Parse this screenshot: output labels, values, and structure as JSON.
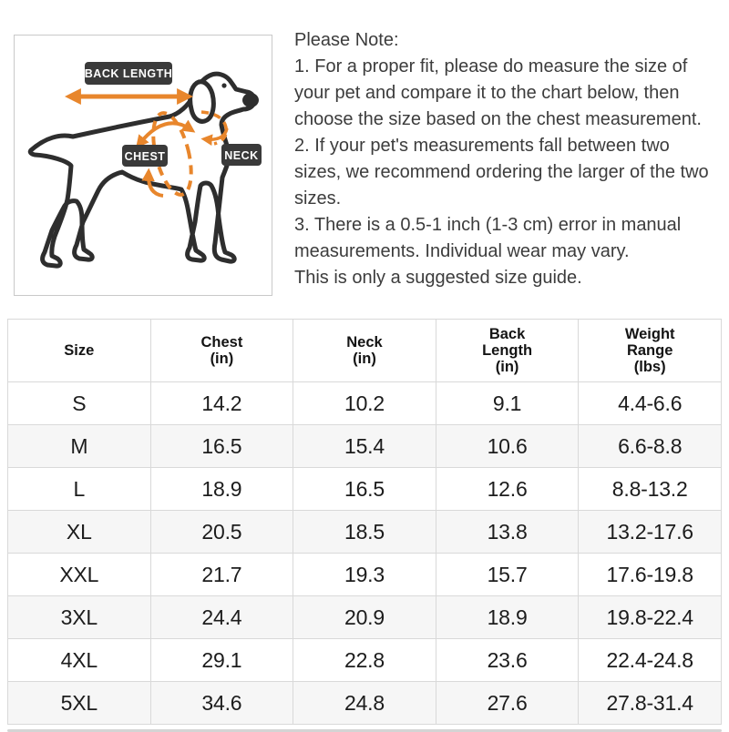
{
  "diagram": {
    "labels": {
      "back_length": "BACK LENGTH",
      "chest": "CHEST",
      "neck": "NECK"
    },
    "colors": {
      "accent": "#E8862C",
      "label_background": "#3A3A3A",
      "label_text": "#FFFFFF",
      "outline": "#2E2E2E",
      "box_border": "#C9C9C9"
    }
  },
  "notes": {
    "title": "Please Note:",
    "items": [
      "1. For a proper fit, please do measure the size of your pet and compare it to the chart below, then choose the size based on the chest measurement.",
      "2. If your pet's measurements fall between two sizes, we recommend ordering the larger of the two sizes.",
      "3. There is a 0.5-1 inch (1-3 cm) error in manual measurements. Individual wear may vary.",
      "This is only a suggested size guide."
    ]
  },
  "size_chart": {
    "headers": [
      "Size",
      "Chest\n(in)",
      "Neck\n(in)",
      "Back\nLength\n(in)",
      "Weight\nRange\n(lbs)"
    ],
    "rows": [
      [
        "S",
        "14.2",
        "10.2",
        "9.1",
        "4.4-6.6"
      ],
      [
        "M",
        "16.5",
        "15.4",
        "10.6",
        "6.6-8.8"
      ],
      [
        "L",
        "18.9",
        "16.5",
        "12.6",
        "8.8-13.2"
      ],
      [
        "XL",
        "20.5",
        "18.5",
        "13.8",
        "13.2-17.6"
      ],
      [
        "XXL",
        "21.7",
        "19.3",
        "15.7",
        "17.6-19.8"
      ],
      [
        "3XL",
        "24.4",
        "20.9",
        "18.9",
        "19.8-22.4"
      ],
      [
        "4XL",
        "29.1",
        "22.8",
        "23.6",
        "22.4-24.8"
      ],
      [
        "5XL",
        "34.6",
        "24.8",
        "27.6",
        "27.8-31.4"
      ]
    ],
    "stripe_color": "#F6F6F6",
    "border_color": "#D9D9D9"
  }
}
